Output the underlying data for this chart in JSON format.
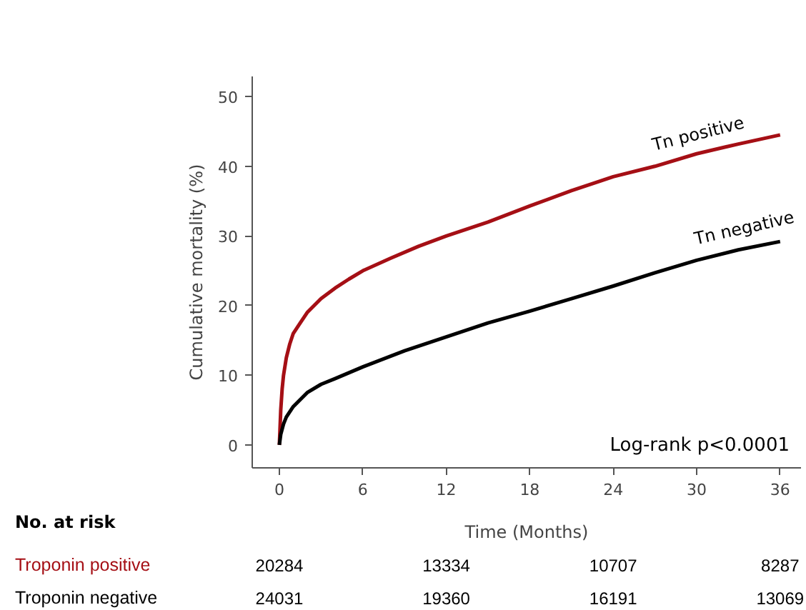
{
  "chart_data": {
    "type": "line",
    "xlabel": "Time (Months)",
    "ylabel": "Cumulative mortality (%)",
    "xlim": [
      -1.95,
      37.5
    ],
    "ylim": [
      -3.3,
      52.9
    ],
    "xticks": [
      0,
      6,
      12,
      18,
      24,
      30,
      36
    ],
    "yticks": [
      0,
      10,
      20,
      30,
      40,
      50
    ],
    "grid": false,
    "legend": false,
    "marker": "none",
    "line_style": "solid",
    "series": [
      {
        "name": "Tn positive",
        "color": "#a50f15",
        "x": [
          0,
          0.1,
          0.2,
          0.3,
          0.5,
          0.75,
          1,
          1.5,
          2,
          3,
          4,
          5,
          6,
          8,
          10,
          12,
          15,
          18,
          21,
          24,
          27,
          30,
          33,
          36
        ],
        "values": [
          0,
          5,
          8,
          10,
          12.5,
          14.5,
          16,
          17.5,
          19,
          21,
          22.5,
          23.8,
          25,
          26.8,
          28.5,
          30,
          32,
          34.3,
          36.5,
          38.5,
          40,
          41.8,
          43.2,
          44.5
        ]
      },
      {
        "name": "Tn negative",
        "color": "#000000",
        "x": [
          0,
          0.1,
          0.3,
          0.5,
          1,
          1.5,
          2,
          3,
          4,
          6,
          9,
          12,
          15,
          18,
          21,
          24,
          27,
          30,
          33,
          36
        ],
        "values": [
          0,
          1.5,
          3,
          4,
          5.5,
          6.5,
          7.5,
          8.7,
          9.5,
          11.2,
          13.5,
          15.5,
          17.5,
          19.2,
          21,
          22.8,
          24.7,
          26.5,
          28,
          29.2
        ]
      }
    ],
    "annotations": [
      "Log-rank p<0.0001",
      "No. at risk",
      "Troponin positive",
      "20284",
      "13334",
      "10707",
      "8287",
      "Troponin negative",
      "24031",
      "19360",
      "16191",
      "13069"
    ]
  }
}
